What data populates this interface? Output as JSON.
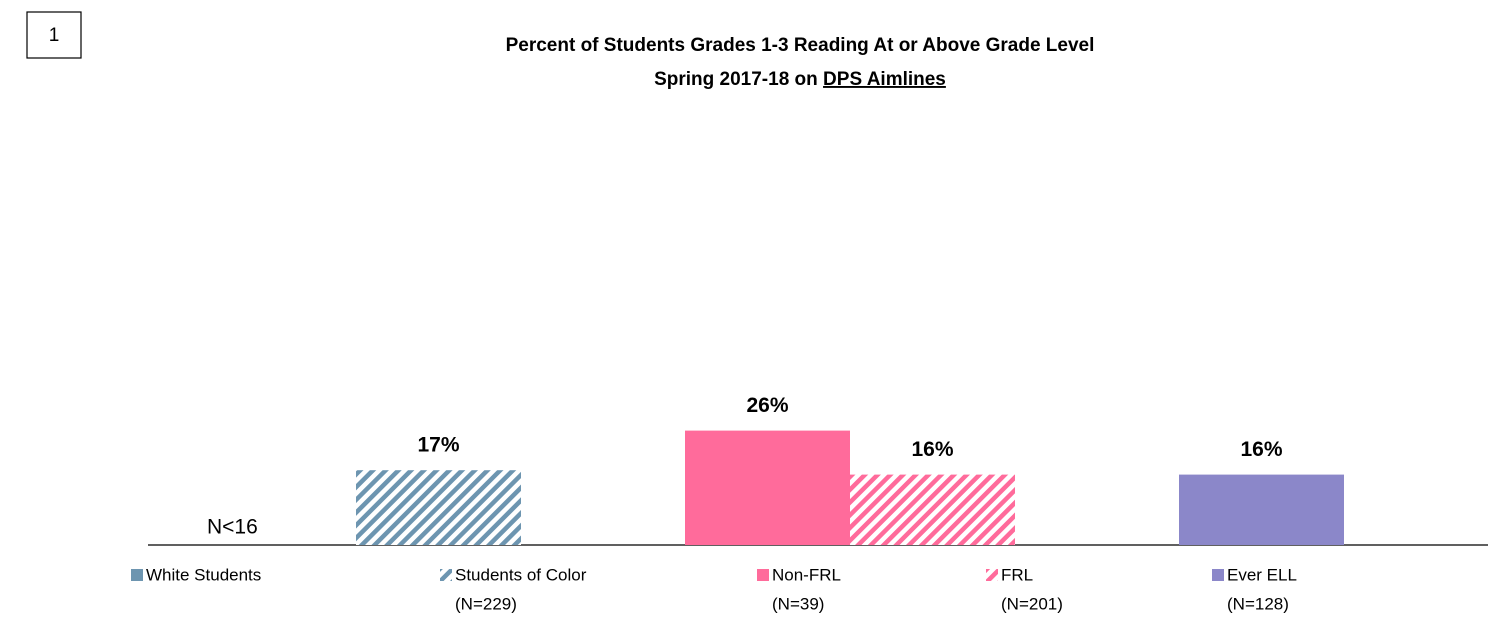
{
  "chart_data": {
    "type": "bar",
    "page_number": "1",
    "title": "Percent of Students Grades 1-3 Reading At or Above Grade Level",
    "subtitle": "Spring 2017-18 on",
    "subtitle_link": "DPS Aimlines",
    "categories": [
      "White Students",
      "Students of Color",
      "Non-FRL",
      "FRL",
      "Ever ELL"
    ],
    "n_labels": [
      null,
      "(N=229)",
      "(N=39)",
      "(N=201)",
      "(N=128)"
    ],
    "values": [
      null,
      17,
      26,
      16,
      16
    ],
    "value_labels": [
      null,
      "17%",
      "26%",
      "16%",
      "16%"
    ],
    "annotation": "N<16",
    "colors": [
      "#6d95b0",
      "#6d95b0",
      "#ff6b9b",
      "#ff6b9b",
      "#8b87c9"
    ],
    "hatched": [
      false,
      true,
      false,
      true,
      false
    ],
    "ylim": [
      0,
      100
    ]
  }
}
